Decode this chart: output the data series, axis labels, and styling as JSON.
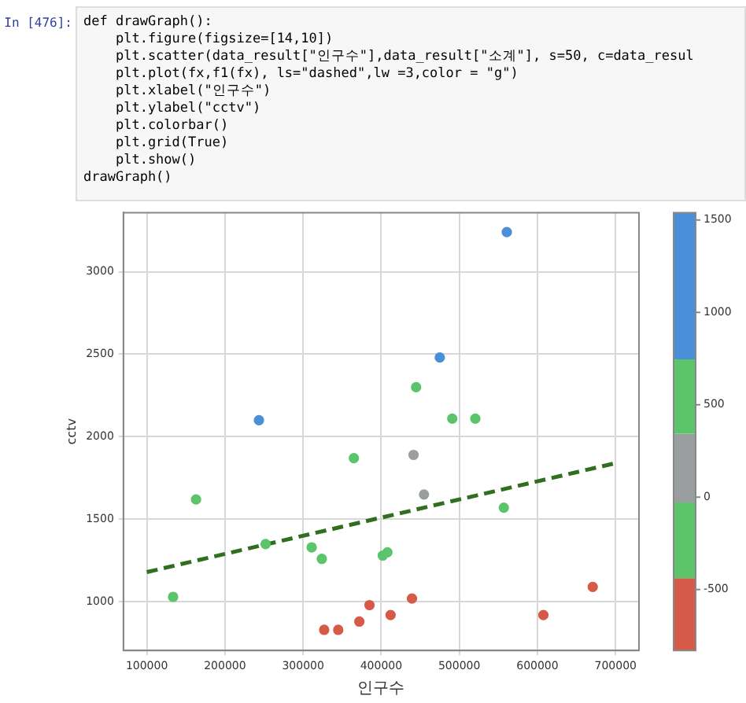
{
  "chart_data": {
    "type": "scatter",
    "annotations": [
      "In [476]:",
      "def drawGraph():",
      "    plt.figure(figsize=[14,10])",
      "    plt.scatter(data_result[\"인구수\"],data_result[\"소계\"], s=50, c=data_resul",
      "    plt.plot(fx,f1(fx), ls=\"dashed\",lw =3,color = \"g\")",
      "    plt.xlabel(\"인구수\")",
      "    plt.ylabel(\"cctv\")",
      "    plt.colorbar()",
      "    plt.grid(True)",
      "    plt.show()",
      "drawGraph()"
    ],
    "xlabel": "인구수",
    "ylabel": "cctv",
    "series": [
      {
        "x": [
          243500,
          365000,
          163000,
          252000,
          311000,
          324000,
          133600,
          327000,
          345000,
          372000,
          385000,
          560800,
          475000,
          444700,
          491000,
          520500,
          441400,
          454800,
          557000,
          408000,
          402000,
          439400,
          412000,
          607600,
          670800
        ],
        "values": [
          2100,
          1870,
          1620,
          1350,
          1330,
          1260,
          1030,
          830,
          830,
          880,
          980,
          3240,
          2480,
          2300,
          2110,
          2110,
          1890,
          1650,
          1570,
          1300,
          1280,
          1020,
          920,
          920,
          1090
        ],
        "colors": [
          "#4a8fd8",
          "#5cc46a",
          "#5cc46a",
          "#5cc46a",
          "#5cc46a",
          "#5cc46a",
          "#5cc46a",
          "#d65a48",
          "#d65a48",
          "#d65a48",
          "#d65a48",
          "#4a8fd8",
          "#4a8fd8",
          "#5cc46a",
          "#5cc46a",
          "#5cc46a",
          "#9a9e9e",
          "#9a9e9e",
          "#5cc46a",
          "#5cc46a",
          "#5cc46a",
          "#d65a48",
          "#d65a48",
          "#d65a48",
          "#d65a48"
        ]
      },
      {
        "type": "line",
        "x": [
          100000,
          700000
        ],
        "values": [
          1180,
          1840
        ],
        "color": "#2f6f1f",
        "line_style": "dashed",
        "marker": "none"
      }
    ],
    "xlim": [
      70000,
      730000
    ],
    "xticks": [
      100000,
      200000,
      300000,
      400000,
      500000,
      600000,
      700000
    ],
    "ylim": [
      705,
      3358
    ],
    "yticks": [
      1000,
      1500,
      2000,
      2500,
      3000
    ],
    "clim": [
      -830,
      1540
    ],
    "cticks": [
      -500,
      0,
      500,
      1000,
      1500
    ],
    "grid": true,
    "legend": false
  }
}
